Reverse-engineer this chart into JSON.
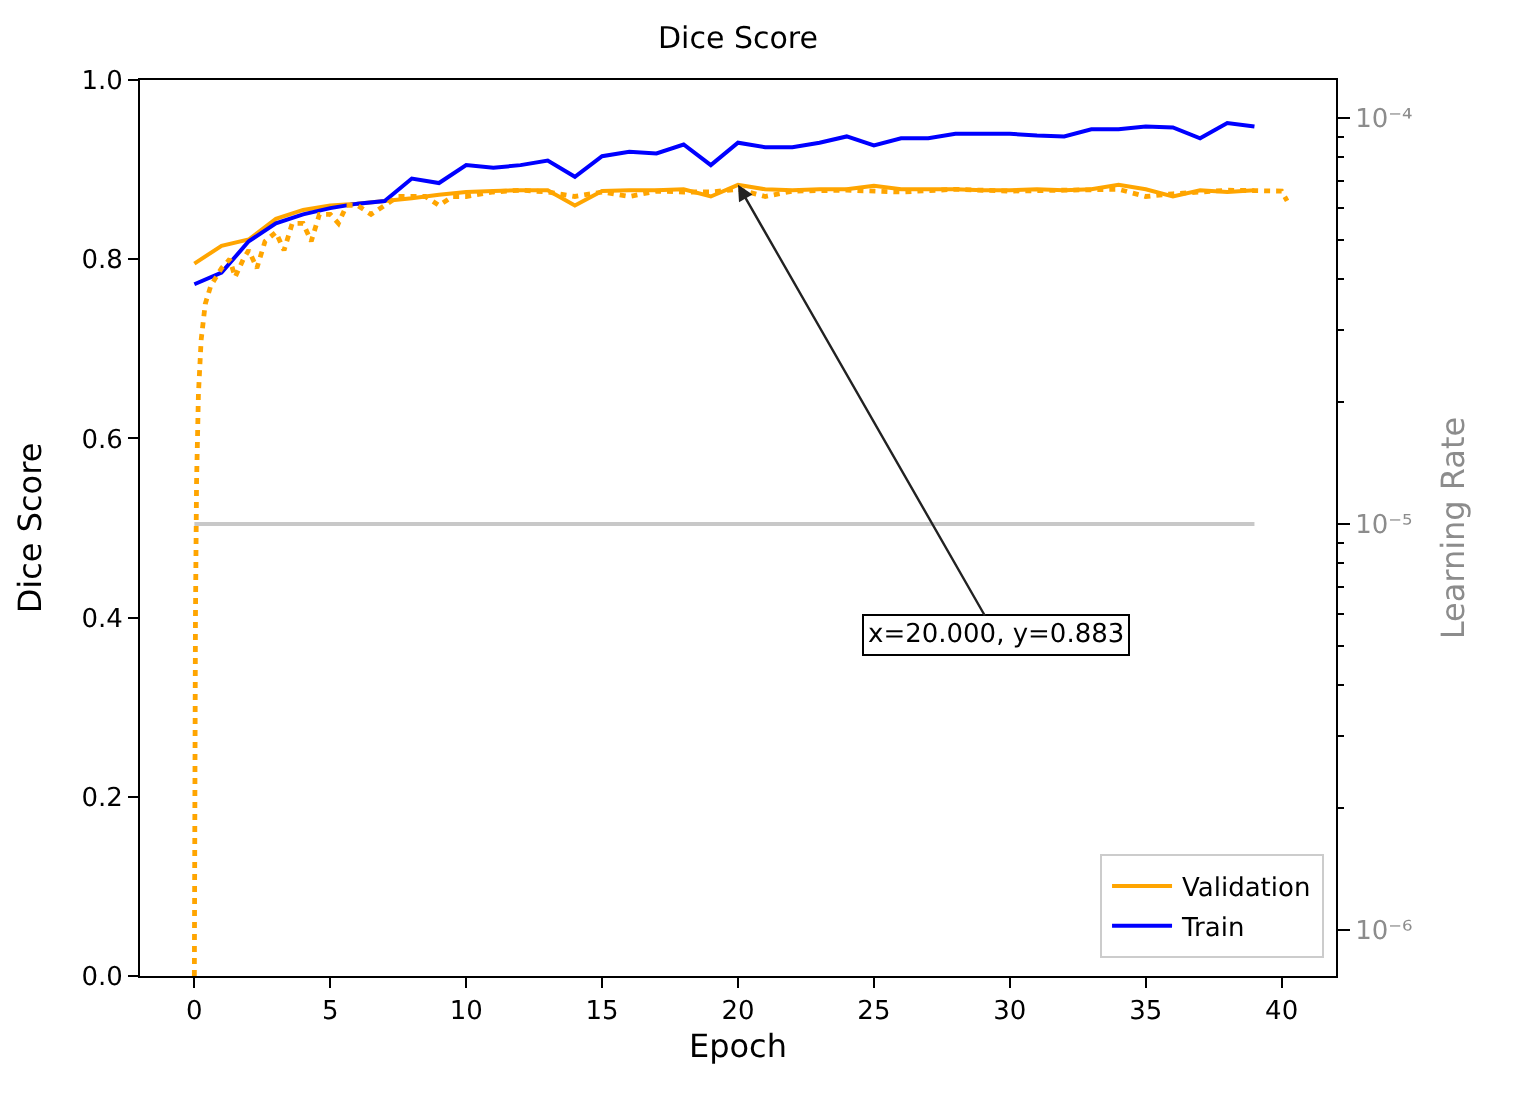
{
  "chart_data": {
    "type": "line",
    "title": "Dice Score",
    "xlabel": "Epoch",
    "ylabel": "Dice Score",
    "y2label": "Learning Rate",
    "xlim": [
      -2,
      42
    ],
    "xticks": [
      0,
      5,
      10,
      15,
      20,
      25,
      30,
      35,
      40
    ],
    "ylim": [
      0,
      1.0
    ],
    "yticks": [
      {
        "value": 0,
        "label": "0.0"
      },
      0.2,
      0.4,
      0.6,
      0.8,
      {
        "value": 1.0,
        "label": "1.0"
      }
    ],
    "y2lim": [
      7.7e-07,
      0.000124
    ],
    "y2ticks": [
      {
        "value": 1e-06,
        "label": "10⁻⁶"
      },
      {
        "value": 1e-05,
        "label": "10⁻⁵"
      },
      {
        "value": 0.0001,
        "label": "10⁻⁴"
      }
    ],
    "log": "y2",
    "legend": "bottom right",
    "marker": "none",
    "annotations": [
      {
        "text": "x=20.000, y=0.883",
        "x": 20,
        "y": 0.883
      }
    ],
    "series": [
      {
        "name": "Validation",
        "color": "#ffa500",
        "line_style": "solid",
        "x": [
          0,
          1,
          2,
          3,
          4,
          5,
          6,
          7,
          8,
          9,
          10,
          11,
          12,
          13,
          14,
          15,
          16,
          17,
          18,
          19,
          20,
          21,
          22,
          23,
          24,
          25,
          26,
          27,
          28,
          29,
          30,
          31,
          32,
          33,
          34,
          35,
          36,
          37,
          38,
          39
        ],
        "values": [
          0.795,
          0.815,
          0.822,
          0.845,
          0.855,
          0.86,
          0.862,
          0.865,
          0.868,
          0.872,
          0.875,
          0.876,
          0.877,
          0.877,
          0.86,
          0.876,
          0.877,
          0.877,
          0.878,
          0.87,
          0.883,
          0.878,
          0.877,
          0.878,
          0.878,
          0.882,
          0.878,
          0.878,
          0.878,
          0.877,
          0.877,
          0.878,
          0.877,
          0.878,
          0.883,
          0.878,
          0.87,
          0.877,
          0.875,
          0.877
        ]
      },
      {
        "name": "Train",
        "color": "#0000ff",
        "line_style": "solid",
        "x": [
          0,
          1,
          2,
          3,
          4,
          5,
          6,
          7,
          8,
          9,
          10,
          11,
          12,
          13,
          14,
          15,
          16,
          17,
          18,
          19,
          20,
          21,
          22,
          23,
          24,
          25,
          26,
          27,
          28,
          29,
          30,
          31,
          32,
          33,
          34,
          35,
          36,
          37,
          38,
          39
        ],
        "values": [
          0.772,
          0.785,
          0.82,
          0.84,
          0.85,
          0.857,
          0.862,
          0.865,
          0.89,
          0.885,
          0.905,
          0.902,
          0.905,
          0.91,
          0.892,
          0.915,
          0.92,
          0.918,
          0.928,
          0.905,
          0.93,
          0.925,
          0.925,
          0.93,
          0.937,
          0.927,
          0.935,
          0.935,
          0.94,
          0.94,
          0.94,
          0.938,
          0.937,
          0.945,
          0.945,
          0.948,
          0.947,
          0.935,
          0.952,
          0.948
        ]
      },
      {
        "color": "#ffa500",
        "line_style": "dotted",
        "x": [
          0,
          0.02,
          0.04,
          0.08,
          0.15,
          0.25,
          0.4,
          0.6,
          0.8,
          1,
          1.3,
          1.5,
          1.8,
          2,
          2.3,
          2.6,
          3,
          3.3,
          3.6,
          4,
          4.3,
          4.6,
          5,
          5.3,
          5.6,
          6,
          6.5,
          7,
          7.5,
          8,
          8.5,
          9,
          9.5,
          10,
          11,
          12,
          13,
          14,
          15,
          16,
          17,
          18,
          19,
          20,
          21,
          22,
          24,
          26,
          28,
          30,
          32,
          34,
          35,
          36,
          38,
          40,
          40.2
        ],
        "values": [
          0,
          0.2,
          0.4,
          0.55,
          0.65,
          0.71,
          0.75,
          0.77,
          0.78,
          0.79,
          0.8,
          0.78,
          0.8,
          0.81,
          0.79,
          0.82,
          0.83,
          0.81,
          0.84,
          0.84,
          0.82,
          0.85,
          0.85,
          0.84,
          0.86,
          0.86,
          0.85,
          0.86,
          0.87,
          0.87,
          0.87,
          0.86,
          0.87,
          0.87,
          0.875,
          0.877,
          0.875,
          0.87,
          0.875,
          0.87,
          0.876,
          0.875,
          0.875,
          0.878,
          0.87,
          0.876,
          0.877,
          0.875,
          0.878,
          0.876,
          0.877,
          0.878,
          0.87,
          0.873,
          0.877,
          0.876,
          0.865
        ]
      },
      {
        "color": "#c8c8c8",
        "line_style": "solid",
        "axis": "y2",
        "x": [
          0,
          39
        ],
        "values": [
          1e-05,
          1e-05
        ]
      }
    ]
  }
}
